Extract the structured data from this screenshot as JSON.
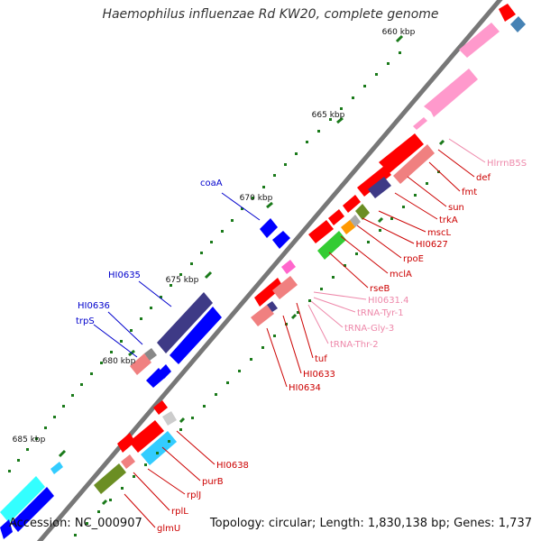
{
  "title": "Haemophilus influenzae Rd KW20, complete genome",
  "footer": {
    "accession": "Accession: NC_000907",
    "summary": "Topology: circular; Length: 1,830,138 bp; Genes: 1,737"
  },
  "colors": {
    "backbone": "#777777",
    "tick": "#1a7a1a",
    "cds": "#ff0000",
    "cds_alt": "#f08080",
    "rrna": "#ff99cc",
    "trna": "#ff66cc",
    "blue": "#0000ff",
    "navy": "#3e3a86",
    "cyan": "#33ccff",
    "olive": "#6b8e23",
    "green": "#33cc33",
    "orange": "#ff9900",
    "steel": "#4682b4",
    "grey": "#aaaaaa",
    "label_red": "#cc0000",
    "label_blue": "#0000cc",
    "label_pink": "#ee88aa"
  },
  "scale_labels": [
    "660 kbp",
    "665 kbp",
    "670 kbp",
    "675 kbp",
    "680 kbp",
    "685 kbp"
  ],
  "gene_labels": {
    "right": [
      "HlrrnB5S",
      "def",
      "fmt",
      "sun",
      "trkA",
      "mscL",
      "HI0627",
      "rpoE",
      "mclA",
      "rseB",
      "HI0631.4",
      "tRNA-Tyr-1",
      "tRNA-Gly-3",
      "tRNA-Thr-2",
      "tuf",
      "HI0633",
      "HI0634",
      "HI0638",
      "purB",
      "rplJ",
      "rplL",
      "glmU"
    ],
    "left": [
      "coaA",
      "HI0635",
      "HI0636",
      "trpS"
    ]
  }
}
